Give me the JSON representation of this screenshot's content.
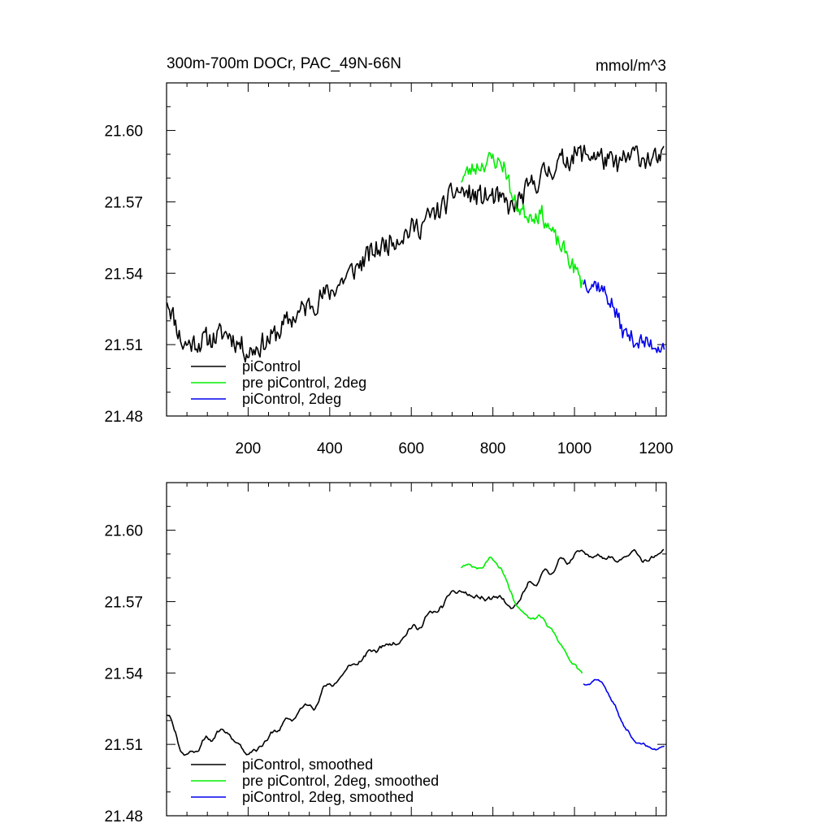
{
  "chart_data": [
    {
      "type": "line",
      "title": "300m-700m DOCr, PAC_49N-66N",
      "units": "mmol/m^3",
      "xlim": [
        0,
        1225
      ],
      "ylim": [
        21.48,
        21.62
      ],
      "xticks": [
        200,
        400,
        600,
        800,
        1000,
        1200
      ],
      "xtick_labels": [
        "200",
        "400",
        "600",
        "800",
        "1000",
        "1200"
      ],
      "yticks": [
        21.48,
        21.51,
        21.54,
        21.57,
        21.6
      ],
      "ytick_labels": [
        "21.48",
        "21.51",
        "21.54",
        "21.57",
        "21.60"
      ],
      "legend": {
        "placement": "bottom-left"
      },
      "series": [
        {
          "name": "piControl",
          "color": "#000000",
          "noise": 0.009,
          "smooth_window": 1,
          "seed": 11,
          "x_start": 1,
          "x_end": 1220,
          "step": 3,
          "anchors": [
            [
              1,
              21.53
            ],
            [
              40,
              21.51
            ],
            [
              100,
              21.512
            ],
            [
              150,
              21.515
            ],
            [
              200,
              21.507
            ],
            [
              260,
              21.513
            ],
            [
              300,
              21.52
            ],
            [
              360,
              21.528
            ],
            [
              400,
              21.532
            ],
            [
              450,
              21.54
            ],
            [
              500,
              21.548
            ],
            [
              560,
              21.555
            ],
            [
              620,
              21.56
            ],
            [
              680,
              21.568
            ],
            [
              710,
              21.575
            ],
            [
              760,
              21.572
            ],
            [
              800,
              21.572
            ],
            [
              850,
              21.567
            ],
            [
              900,
              21.578
            ],
            [
              950,
              21.585
            ],
            [
              1000,
              21.59
            ],
            [
              1050,
              21.59
            ],
            [
              1100,
              21.585
            ],
            [
              1150,
              21.59
            ],
            [
              1200,
              21.587
            ],
            [
              1220,
              21.588
            ]
          ]
        },
        {
          "name": "pre piControl, 2deg",
          "color": "#00ee00",
          "noise": 0.007,
          "smooth_window": 1,
          "seed": 23,
          "x_start": 722,
          "x_end": 1020,
          "step": 3,
          "anchors": [
            [
              722,
              21.58
            ],
            [
              760,
              21.585
            ],
            [
              800,
              21.588
            ],
            [
              830,
              21.585
            ],
            [
              850,
              21.57
            ],
            [
              880,
              21.565
            ],
            [
              920,
              21.565
            ],
            [
              950,
              21.555
            ],
            [
              980,
              21.548
            ],
            [
              1000,
              21.542
            ],
            [
              1020,
              21.535
            ]
          ]
        },
        {
          "name": "piControl, 2deg",
          "color": "#0000ee",
          "noise": 0.007,
          "smooth_window": 1,
          "seed": 37,
          "x_start": 1022,
          "x_end": 1220,
          "step": 3,
          "anchors": [
            [
              1022,
              21.537
            ],
            [
              1060,
              21.535
            ],
            [
              1090,
              21.528
            ],
            [
              1120,
              21.515
            ],
            [
              1150,
              21.512
            ],
            [
              1180,
              21.51
            ],
            [
              1220,
              21.51
            ]
          ]
        }
      ]
    },
    {
      "type": "line",
      "title": "",
      "units": "",
      "xlim": [
        0,
        1225
      ],
      "ylim": [
        21.48,
        21.62
      ],
      "xticks": [
        200,
        400,
        600,
        800,
        1000,
        1200
      ],
      "xtick_labels": [],
      "yticks": [
        21.48,
        21.51,
        21.54,
        21.57,
        21.6
      ],
      "ytick_labels": [
        "21.48",
        "21.51",
        "21.54",
        "21.57",
        "21.60"
      ],
      "legend": {
        "placement": "bottom-left"
      },
      "series": [
        {
          "name": "piControl, smoothed",
          "color": "#000000",
          "noise": 0.009,
          "smooth_window": 3,
          "seed": 11,
          "x_start": 1,
          "x_end": 1220,
          "step": 3,
          "anchors": [
            [
              1,
              21.528
            ],
            [
              40,
              21.505
            ],
            [
              100,
              21.512
            ],
            [
              150,
              21.516
            ],
            [
              200,
              21.507
            ],
            [
              260,
              21.514
            ],
            [
              300,
              21.52
            ],
            [
              360,
              21.528
            ],
            [
              400,
              21.535
            ],
            [
              450,
              21.542
            ],
            [
              500,
              21.548
            ],
            [
              560,
              21.555
            ],
            [
              620,
              21.56
            ],
            [
              680,
              21.568
            ],
            [
              710,
              21.575
            ],
            [
              760,
              21.571
            ],
            [
              800,
              21.571
            ],
            [
              850,
              21.566
            ],
            [
              900,
              21.578
            ],
            [
              950,
              21.585
            ],
            [
              1000,
              21.59
            ],
            [
              1050,
              21.59
            ],
            [
              1100,
              21.585
            ],
            [
              1150,
              21.59
            ],
            [
              1200,
              21.587
            ],
            [
              1220,
              21.589
            ]
          ]
        },
        {
          "name": "pre piControl, 2deg, smoothed",
          "color": "#00ee00",
          "noise": 0.007,
          "smooth_window": 3,
          "seed": 23,
          "x_start": 722,
          "x_end": 1020,
          "step": 3,
          "anchors": [
            [
              722,
              21.585
            ],
            [
              760,
              21.585
            ],
            [
              800,
              21.588
            ],
            [
              830,
              21.582
            ],
            [
              850,
              21.57
            ],
            [
              880,
              21.565
            ],
            [
              920,
              21.565
            ],
            [
              950,
              21.555
            ],
            [
              980,
              21.548
            ],
            [
              1000,
              21.543
            ],
            [
              1020,
              21.538
            ]
          ]
        },
        {
          "name": "piControl, 2deg, smoothed",
          "color": "#0000ee",
          "noise": 0.006,
          "smooth_window": 3,
          "seed": 37,
          "x_start": 1022,
          "x_end": 1220,
          "step": 3,
          "anchors": [
            [
              1022,
              21.537
            ],
            [
              1060,
              21.538
            ],
            [
              1090,
              21.53
            ],
            [
              1120,
              21.517
            ],
            [
              1150,
              21.512
            ],
            [
              1180,
              21.508
            ],
            [
              1220,
              21.511
            ]
          ]
        }
      ]
    }
  ]
}
